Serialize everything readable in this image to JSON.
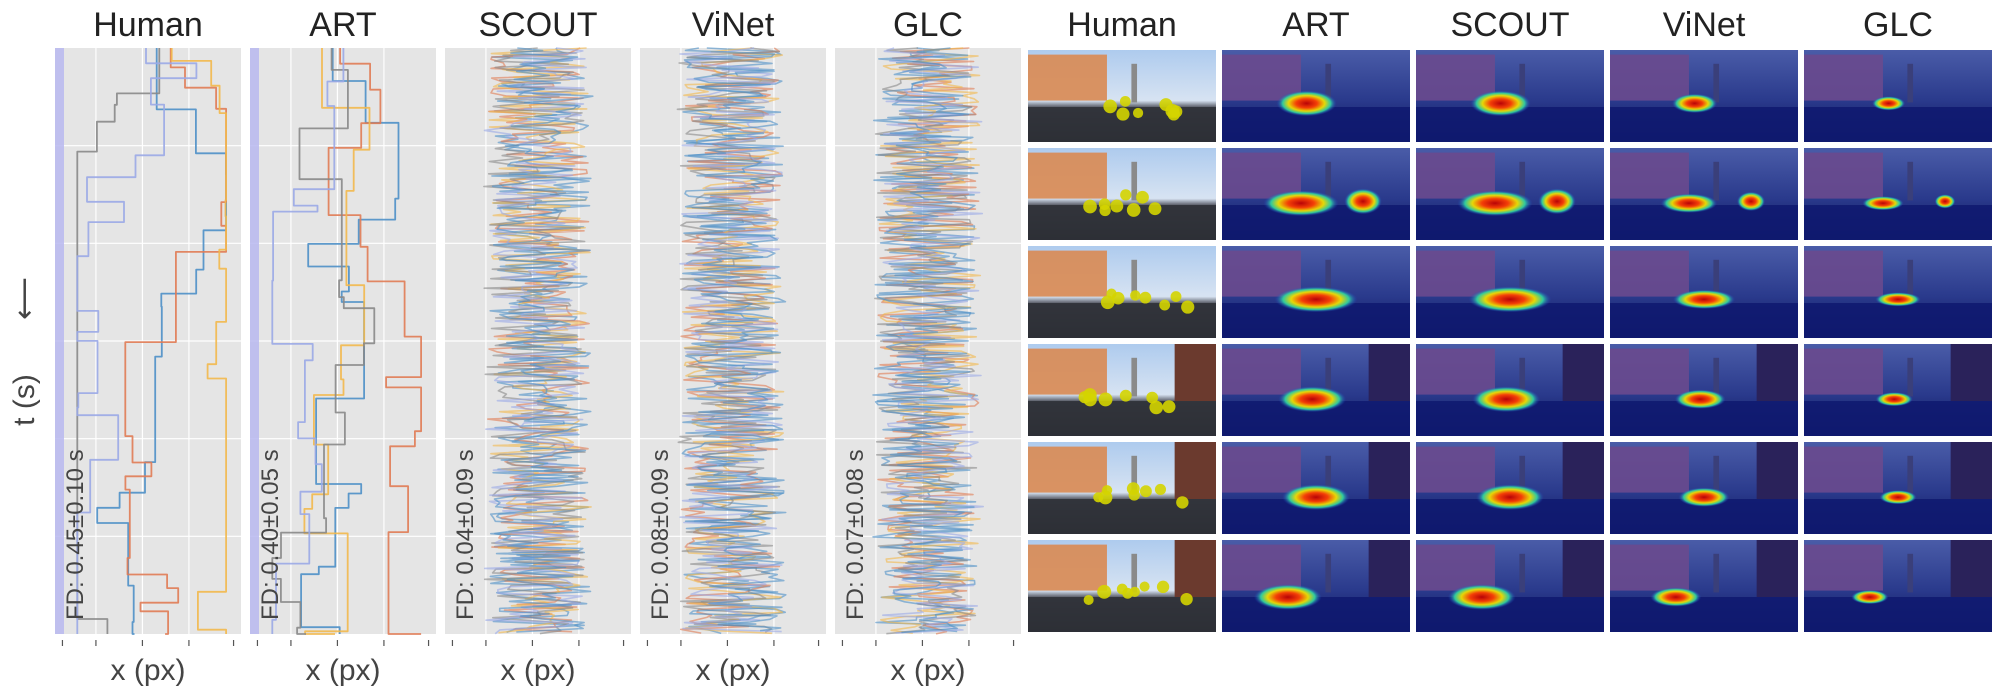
{
  "chart_data": {
    "type": "line",
    "y_axis_label": "t (s)",
    "y_axis_arrow": "⟵",
    "x_axis_label": "x (px)",
    "trajectory_panels": [
      {
        "title": "Human",
        "fd_label": "FD: 0.45±0.10 s",
        "fd_mean": 0.45,
        "fd_std": 0.1,
        "style": "smooth"
      },
      {
        "title": "ART",
        "fd_label": "FD: 0.40±0.05 s",
        "fd_mean": 0.4,
        "fd_std": 0.05,
        "style": "smooth"
      },
      {
        "title": "SCOUT",
        "fd_label": "FD: 0.04±0.09 s",
        "fd_mean": 0.04,
        "fd_std": 0.09,
        "style": "jittery"
      },
      {
        "title": "ViNet",
        "fd_label": "FD: 0.08±0.09 s",
        "fd_mean": 0.08,
        "fd_std": 0.09,
        "style": "jittery"
      },
      {
        "title": "GLC",
        "fd_label": "FD: 0.07±0.08 s",
        "fd_mean": 0.07,
        "fd_std": 0.08,
        "style": "jittery"
      }
    ],
    "series_colors": [
      "#4c8fc7",
      "#e07b54",
      "#f2b84b",
      "#888888",
      "#9aa8e6"
    ],
    "heatmap_grid": {
      "columns": [
        "Human",
        "ART",
        "SCOUT",
        "ViNet",
        "GLC"
      ],
      "rows": 6,
      "human_fixation_color": "#d4d400"
    }
  }
}
